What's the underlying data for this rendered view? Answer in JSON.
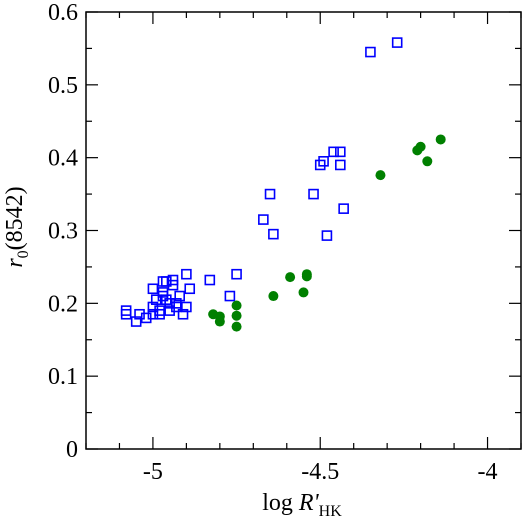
{
  "chart_data": {
    "type": "scatter",
    "xlim": [
      -5.2,
      -3.9
    ],
    "ylim": [
      0,
      0.6
    ],
    "x_ticks": [
      -5,
      -4.5,
      -4
    ],
    "x_tick_labels": [
      "-5",
      "-4.5",
      "-4"
    ],
    "x_minor_step": 0.1,
    "y_ticks": [
      0,
      0.1,
      0.2,
      0.3,
      0.4,
      0.5,
      0.6
    ],
    "y_tick_labels": [
      "0",
      "0.1",
      "0.2",
      "0.3",
      "0.4",
      "0.5",
      "0.6"
    ],
    "y_minor_step": 0.05,
    "xlabel": {
      "prefix": "log ",
      "var": "R'",
      "sub": "HK"
    },
    "ylabel": {
      "var": "r",
      "sub": "0",
      "suffix": "(8542)"
    },
    "grid": false,
    "series": [
      {
        "marker": "open-square",
        "color": "#0000ff",
        "points": [
          [
            -5.08,
            0.19
          ],
          [
            -5.08,
            0.185
          ],
          [
            -5.05,
            0.175
          ],
          [
            -5.04,
            0.185
          ],
          [
            -5.02,
            0.18
          ],
          [
            -5.0,
            0.185
          ],
          [
            -5.0,
            0.195
          ],
          [
            -5.0,
            0.22
          ],
          [
            -4.99,
            0.205
          ],
          [
            -4.98,
            0.185
          ],
          [
            -4.98,
            0.19
          ],
          [
            -4.97,
            0.21
          ],
          [
            -4.97,
            0.215
          ],
          [
            -4.97,
            0.23
          ],
          [
            -4.96,
            0.205
          ],
          [
            -4.96,
            0.23
          ],
          [
            -4.95,
            0.19
          ],
          [
            -4.95,
            0.2
          ],
          [
            -4.94,
            0.225
          ],
          [
            -4.94,
            0.232
          ],
          [
            -4.93,
            0.195
          ],
          [
            -4.93,
            0.2
          ],
          [
            -4.92,
            0.21
          ],
          [
            -4.91,
            0.185
          ],
          [
            -4.9,
            0.195
          ],
          [
            -4.9,
            0.24
          ],
          [
            -4.89,
            0.22
          ],
          [
            -4.83,
            0.232
          ],
          [
            -4.77,
            0.21
          ],
          [
            -4.75,
            0.24
          ],
          [
            -4.67,
            0.315
          ],
          [
            -4.65,
            0.35
          ],
          [
            -4.64,
            0.295
          ],
          [
            -4.52,
            0.35
          ],
          [
            -4.5,
            0.39
          ],
          [
            -4.49,
            0.395
          ],
          [
            -4.48,
            0.293
          ],
          [
            -4.46,
            0.408
          ],
          [
            -4.44,
            0.408
          ],
          [
            -4.44,
            0.39
          ],
          [
            -4.43,
            0.33
          ],
          [
            -4.35,
            0.545
          ],
          [
            -4.27,
            0.558
          ]
        ]
      },
      {
        "marker": "filled-circle",
        "color": "#008000",
        "points": [
          [
            -4.82,
            0.185
          ],
          [
            -4.8,
            0.175
          ],
          [
            -4.8,
            0.182
          ],
          [
            -4.75,
            0.197
          ],
          [
            -4.75,
            0.183
          ],
          [
            -4.75,
            0.168
          ],
          [
            -4.64,
            0.21
          ],
          [
            -4.59,
            0.236
          ],
          [
            -4.55,
            0.215
          ],
          [
            -4.54,
            0.237
          ],
          [
            -4.54,
            0.24
          ],
          [
            -4.32,
            0.376
          ],
          [
            -4.21,
            0.41
          ],
          [
            -4.2,
            0.415
          ],
          [
            -4.18,
            0.395
          ],
          [
            -4.14,
            0.425
          ]
        ]
      }
    ]
  }
}
